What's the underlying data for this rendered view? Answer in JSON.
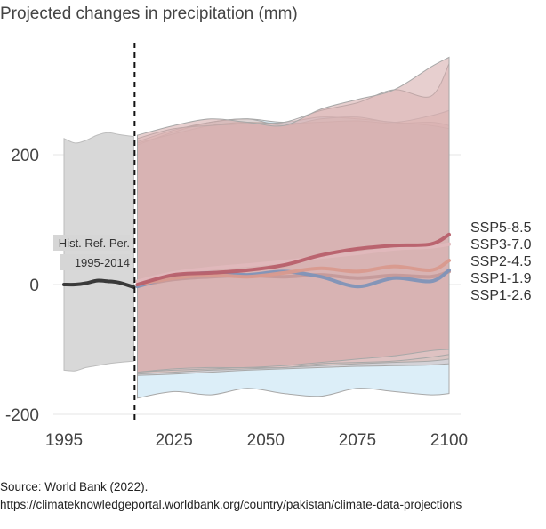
{
  "title": "Projected changes in precipitation (mm)",
  "source_line": "Source: World Bank (2022).",
  "url_line": "https://climateknowledgeportal.worldbank.org/country/pakistan/climate-data-projections",
  "colors": {
    "historical": "#3a3a3a",
    "historical_band": "#d6d6d6",
    "ssp1_19": "#7f93b8",
    "ssp1_26": "#d8ecf7",
    "ssp2_45": "#d99a8e",
    "ssp3_70": "#e0b8bc",
    "ssp5_85": "#b8606c"
  },
  "chart_data": {
    "type": "line",
    "title": "Projected changes in precipitation (mm)",
    "xlabel": "",
    "ylabel": "",
    "xlim": [
      1995,
      2100
    ],
    "ylim": [
      -200,
      300
    ],
    "x_ticks": [
      "1995",
      "2025",
      "2050",
      "2075",
      "2100"
    ],
    "y_ticks": [
      "200",
      "0",
      "-200"
    ],
    "reference_line_year": 2014,
    "annotation": [
      "Hist. Ref. Per.",
      "1995-2014"
    ],
    "historical": {
      "x": [
        1995,
        1998,
        2001,
        2004,
        2007,
        2010,
        2014
      ],
      "median": [
        0,
        0,
        2,
        6,
        5,
        3,
        -4
      ],
      "upper": [
        225,
        218,
        222,
        230,
        234,
        231,
        228
      ],
      "lower": [
        -132,
        -133,
        -128,
        -125,
        -122,
        -120,
        -118
      ]
    },
    "series": [
      {
        "name": "SSP5-8.5",
        "x": [
          2015,
          2025,
          2035,
          2045,
          2055,
          2065,
          2075,
          2085,
          2095,
          2100
        ],
        "median": [
          0,
          15,
          18,
          22,
          30,
          45,
          55,
          60,
          62,
          77
        ],
        "upper": [
          230,
          245,
          255,
          250,
          245,
          270,
          285,
          300,
          335,
          350
        ],
        "lower": [
          -135,
          -130,
          -128,
          -128,
          -125,
          -120,
          -115,
          -110,
          -102,
          -100
        ]
      },
      {
        "name": "SSP3-7.0",
        "x": [
          2015,
          2025,
          2035,
          2045,
          2055,
          2065,
          2075,
          2085,
          2095,
          2100
        ],
        "median": [
          5,
          18,
          25,
          30,
          35,
          42,
          48,
          55,
          58,
          62
        ],
        "upper": [
          225,
          240,
          245,
          248,
          250,
          268,
          280,
          300,
          290,
          340
        ],
        "lower": [
          -135,
          -132,
          -130,
          -128,
          -128,
          -122,
          -120,
          -118,
          -112,
          -108
        ]
      },
      {
        "name": "SSP2-4.5",
        "x": [
          2015,
          2025,
          2035,
          2045,
          2055,
          2065,
          2075,
          2085,
          2095,
          2100
        ],
        "median": [
          0,
          10,
          15,
          12,
          18,
          25,
          20,
          28,
          22,
          37
        ],
        "upper": [
          220,
          238,
          250,
          255,
          245,
          255,
          258,
          250,
          260,
          268
        ],
        "lower": [
          -138,
          -135,
          -132,
          -130,
          -128,
          -125,
          -122,
          -120,
          -118,
          -115
        ]
      },
      {
        "name": "SSP1-1.9",
        "x": [
          2015,
          2025,
          2035,
          2045,
          2055,
          2065,
          2075,
          2085,
          2095,
          2100
        ],
        "median": [
          -3,
          12,
          18,
          15,
          20,
          12,
          -3,
          10,
          5,
          22
        ],
        "upper": [
          215,
          235,
          250,
          255,
          250,
          258,
          255,
          250,
          245,
          240
        ],
        "lower": [
          -175,
          -165,
          -170,
          -160,
          -168,
          -172,
          -160,
          -165,
          -170,
          -168
        ]
      },
      {
        "name": "SSP1-2.6",
        "x": [
          2015,
          2025,
          2035,
          2045,
          2055,
          2065,
          2075,
          2085,
          2095,
          2100
        ],
        "median": [
          -2,
          8,
          12,
          14,
          12,
          15,
          10,
          14,
          12,
          20
        ],
        "upper": [
          218,
          232,
          245,
          250,
          248,
          250,
          252,
          248,
          250,
          245
        ],
        "lower": [
          -140,
          -138,
          -135,
          -132,
          -130,
          -128,
          -126,
          -125,
          -124,
          -122
        ]
      }
    ]
  }
}
